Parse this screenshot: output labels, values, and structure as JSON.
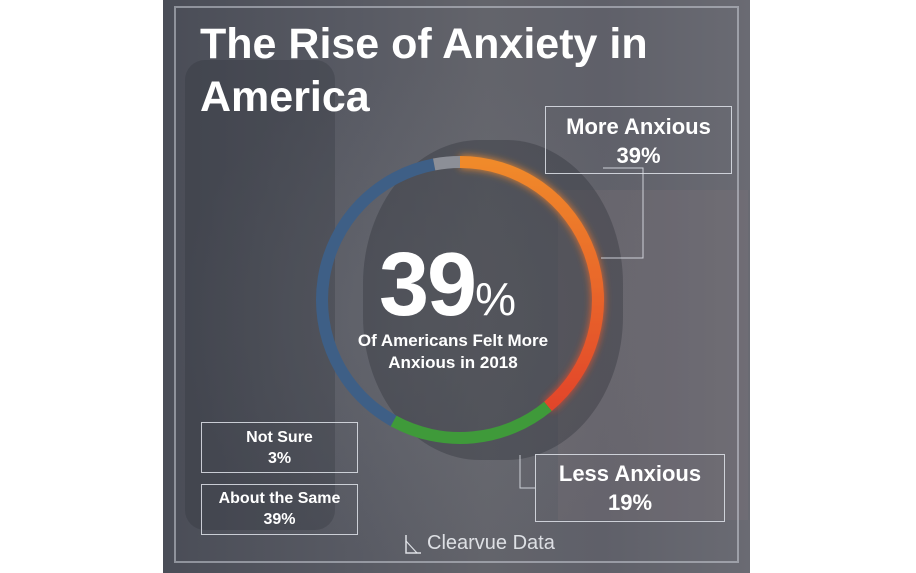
{
  "title": "The Rise of Anxiety in America",
  "center": {
    "big_number": "39",
    "percent_sign": "%",
    "caption_line1": "Of Americans Felt More",
    "caption_line2": "Anxious in 2018"
  },
  "labels": {
    "more": {
      "name": "More Anxious",
      "pct": "39%"
    },
    "less": {
      "name": "Less Anxious",
      "pct": "19%"
    },
    "not_sure": {
      "name": "Not Sure",
      "pct": "3%"
    },
    "same": {
      "name": "About the Same",
      "pct": "39%"
    }
  },
  "brand": "Clearvue Data",
  "chart_data": {
    "type": "pie",
    "variant": "donut",
    "title": "The Rise of Anxiety in America",
    "slices": [
      {
        "label": "More Anxious",
        "value": 39,
        "color": "#e8622a"
      },
      {
        "label": "Less Anxious",
        "value": 19,
        "color": "#3f9a3a"
      },
      {
        "label": "About the Same",
        "value": 39,
        "color": "#3e5f86"
      },
      {
        "label": "Not Sure",
        "value": 3,
        "color": "#8c8f97"
      }
    ]
  }
}
